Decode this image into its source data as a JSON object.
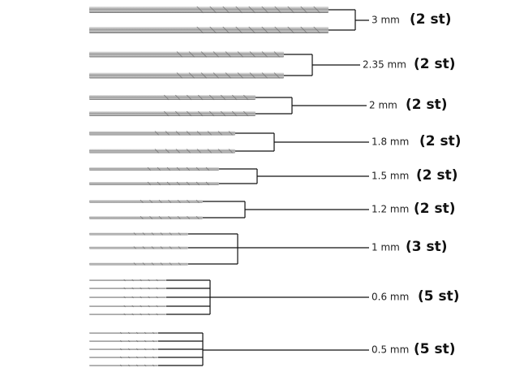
{
  "groups": [
    {
      "size": "3 mm",
      "count": "(2 st)"
    },
    {
      "size": "2.35 mm",
      "count": "(2 st)"
    },
    {
      "size": "2 mm",
      "count": "(2 st)"
    },
    {
      "size": "1.8 mm",
      "count": "(2 st)"
    },
    {
      "size": "1.5 mm",
      "count": "(2 st)"
    },
    {
      "size": "1.2 mm",
      "count": "(2 st)"
    },
    {
      "size": "1 mm",
      "count": "(3 st)"
    },
    {
      "size": "0.6 mm",
      "count": "(5 st)"
    },
    {
      "size": "0.5 mm",
      "count": "(5 st)"
    }
  ]
}
